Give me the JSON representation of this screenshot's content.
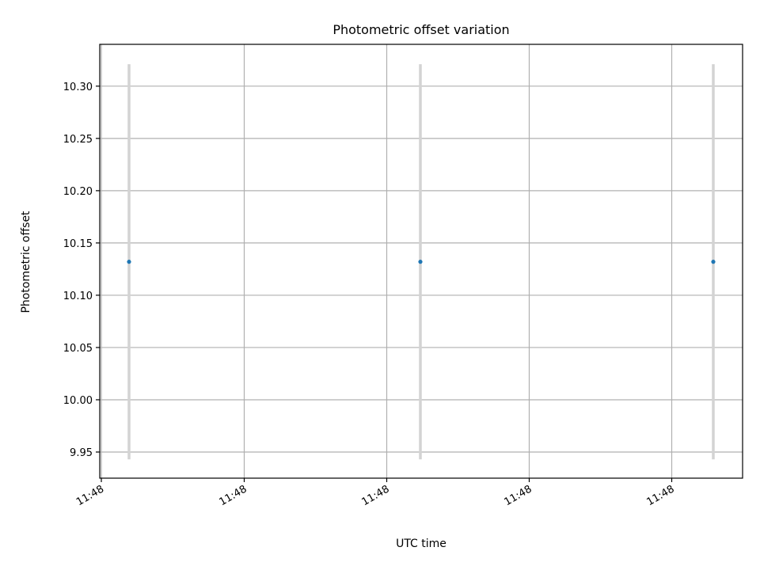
{
  "chart_data": {
    "type": "scatter",
    "title": "Photometric offset variation",
    "xlabel": "UTC time",
    "ylabel": "Photometric offset",
    "grid": true,
    "legend": "none",
    "x_ticks": [
      "11:48",
      "11:48",
      "11:48",
      "11:48",
      "11:48"
    ],
    "y_ticks": [
      "9.95",
      "10.00",
      "10.05",
      "10.10",
      "10.15",
      "10.20",
      "10.25",
      "10.30"
    ],
    "ylim": [
      9.925,
      10.34
    ],
    "series": [
      {
        "points": [
          {
            "x": 0,
            "y": 10.132,
            "err_low": 9.943,
            "err_high": 10.321
          },
          {
            "x": 1,
            "y": 10.132,
            "err_low": 9.943,
            "err_high": 10.321
          },
          {
            "x": 2,
            "y": 10.132,
            "err_low": 9.943,
            "err_high": 10.321
          }
        ]
      }
    ],
    "colors": {
      "point": "#1f77b4",
      "errorbar": "#d3d3d3",
      "grid": "#b0b0b0",
      "axes": "#000000"
    }
  }
}
